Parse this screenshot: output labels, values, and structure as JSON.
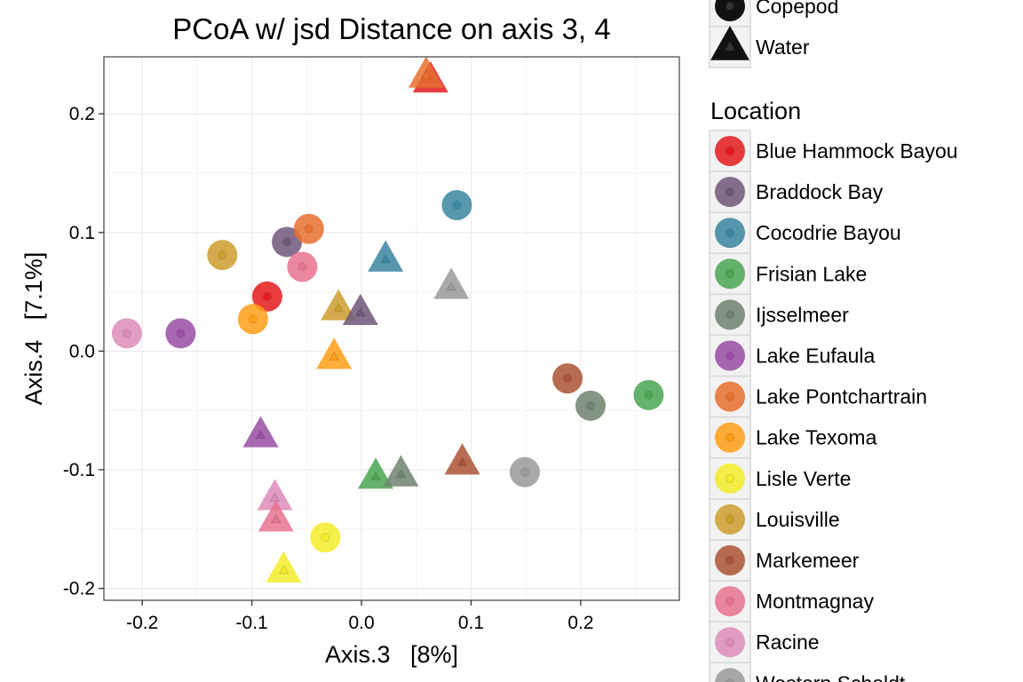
{
  "chart_data": {
    "type": "scatter",
    "title": "PCoA w/ jsd Distance on axis 3, 4",
    "xlabel": "Axis.3   [8%]",
    "ylabel": "Axis.4   [7.1%]",
    "xlim": [
      -0.235,
      0.29
    ],
    "ylim": [
      -0.21,
      0.248
    ],
    "xticks": [
      -0.2,
      -0.1,
      0.0,
      0.1,
      0.2
    ],
    "xtick_labels": [
      "-0.2",
      "-0.1",
      "0.0",
      "0.1",
      "0.2"
    ],
    "yticks": [
      -0.2,
      -0.1,
      0.0,
      0.1,
      0.2
    ],
    "ytick_labels": [
      "-0.2",
      "-0.1",
      "0.0",
      "0.1",
      "0.2"
    ],
    "grid": true,
    "shape_legend": [
      {
        "label": "Copepod",
        "shape": "circle"
      },
      {
        "label": "Water",
        "shape": "triangle"
      }
    ],
    "location_title": "Location",
    "locations": [
      {
        "name": "Blue Hammock Bayou",
        "color": "#e41a1c"
      },
      {
        "name": "Braddock Bay",
        "color": "#6e5679"
      },
      {
        "name": "Cocodrie Bayou",
        "color": "#3a86a0"
      },
      {
        "name": "Frisian Lake",
        "color": "#4aa452"
      },
      {
        "name": "Ijsselmeer",
        "color": "#6f826f"
      },
      {
        "name": "Lake Eufaula",
        "color": "#984ea3"
      },
      {
        "name": "Lake Pontchartrain",
        "color": "#e8702f"
      },
      {
        "name": "Lake Texoma",
        "color": "#ff9e16"
      },
      {
        "name": "Lisle Verte",
        "color": "#f4ec2a"
      },
      {
        "name": "Louisville",
        "color": "#cc9e2e"
      },
      {
        "name": "Markemeer",
        "color": "#ac5234"
      },
      {
        "name": "Montmagnay",
        "color": "#e7728f"
      },
      {
        "name": "Racine",
        "color": "#dc8cb8"
      },
      {
        "name": "Western Scheldt",
        "color": "#999999"
      }
    ],
    "points": [
      {
        "x": 0.063,
        "y": 0.228,
        "location": "Blue Hammock Bayou",
        "shape": "triangle"
      },
      {
        "x": 0.059,
        "y": 0.232,
        "location": "Lake Pontchartrain",
        "shape": "triangle"
      },
      {
        "x": 0.087,
        "y": 0.123,
        "location": "Cocodrie Bayou",
        "shape": "circle"
      },
      {
        "x": -0.068,
        "y": 0.092,
        "location": "Braddock Bay",
        "shape": "circle"
      },
      {
        "x": -0.048,
        "y": 0.103,
        "location": "Lake Pontchartrain",
        "shape": "circle"
      },
      {
        "x": -0.127,
        "y": 0.081,
        "location": "Louisville",
        "shape": "circle"
      },
      {
        "x": -0.054,
        "y": 0.071,
        "location": "Montmagnay",
        "shape": "circle"
      },
      {
        "x": 0.022,
        "y": 0.077,
        "location": "Cocodrie Bayou",
        "shape": "triangle"
      },
      {
        "x": 0.082,
        "y": 0.054,
        "location": "Western Scheldt",
        "shape": "triangle"
      },
      {
        "x": -0.086,
        "y": 0.046,
        "location": "Blue Hammock Bayou",
        "shape": "circle"
      },
      {
        "x": -0.099,
        "y": 0.027,
        "location": "Lake Texoma",
        "shape": "circle"
      },
      {
        "x": -0.214,
        "y": 0.015,
        "location": "Racine",
        "shape": "circle"
      },
      {
        "x": -0.165,
        "y": 0.015,
        "location": "Lake Eufaula",
        "shape": "circle"
      },
      {
        "x": -0.021,
        "y": 0.036,
        "location": "Louisville",
        "shape": "triangle"
      },
      {
        "x": -0.001,
        "y": 0.032,
        "location": "Braddock Bay",
        "shape": "triangle"
      },
      {
        "x": -0.025,
        "y": -0.005,
        "location": "Lake Texoma",
        "shape": "triangle"
      },
      {
        "x": 0.188,
        "y": -0.023,
        "location": "Markemeer",
        "shape": "circle"
      },
      {
        "x": 0.209,
        "y": -0.046,
        "location": "Ijsselmeer",
        "shape": "circle"
      },
      {
        "x": 0.262,
        "y": -0.037,
        "location": "Frisian Lake",
        "shape": "circle"
      },
      {
        "x": -0.092,
        "y": -0.071,
        "location": "Lake Eufaula",
        "shape": "triangle"
      },
      {
        "x": 0.013,
        "y": -0.106,
        "location": "Frisian Lake",
        "shape": "triangle"
      },
      {
        "x": 0.036,
        "y": -0.104,
        "location": "Ijsselmeer",
        "shape": "triangle"
      },
      {
        "x": 0.092,
        "y": -0.094,
        "location": "Markemeer",
        "shape": "triangle"
      },
      {
        "x": 0.149,
        "y": -0.102,
        "location": "Western Scheldt",
        "shape": "circle"
      },
      {
        "x": -0.079,
        "y": -0.124,
        "location": "Racine",
        "shape": "triangle"
      },
      {
        "x": -0.078,
        "y": -0.142,
        "location": "Montmagnay",
        "shape": "triangle"
      },
      {
        "x": -0.033,
        "y": -0.157,
        "location": "Lisle Verte",
        "shape": "circle"
      },
      {
        "x": -0.071,
        "y": -0.185,
        "location": "Lisle Verte",
        "shape": "triangle"
      }
    ]
  }
}
